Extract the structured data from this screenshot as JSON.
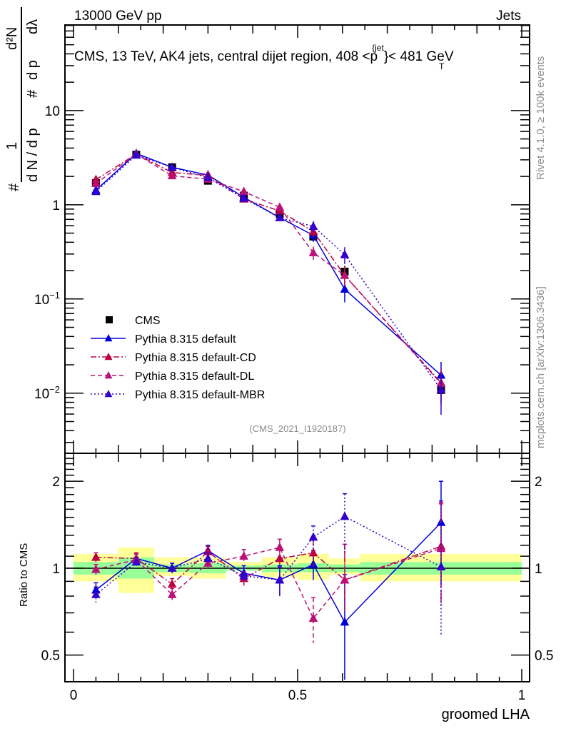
{
  "header": {
    "left": "13000 GeV pp",
    "right": "Jets"
  },
  "side_labels": {
    "rivet": "Rivet 4.1.0, ≥ 100k events",
    "mcplots": "mcplots.cern.ch [arXiv:1306.3436]"
  },
  "chart_data": [
    {
      "type": "line",
      "panel": "main",
      "title": "CMS, 13 TeV, AK4 jets, central dijet region, 408 <p_T^{jet}}< 481 GeV",
      "title_parts": {
        "pre": "CMS, 13 TeV, AK4 jets, central dijet region, 408 <p",
        "sup": "{jet",
        "sub": "T",
        "post": "}< 481 GeV"
      },
      "ylabel": "1/(dN / dp_T) d²N/(dp_T dλ)",
      "ylabel_parts": {
        "hash": "#",
        "one": "1",
        "den": "d N / d p",
        "numhash": "#",
        "num2": "d²N",
        "den2": "d p",
        "dl": "dλ",
        "T": "T"
      },
      "yscale": "log",
      "ylim": [
        0.0023,
        81
      ],
      "yticks": [
        {
          "v": 0.01,
          "label": "10^-2",
          "base": "10",
          "exp": "−2"
        },
        {
          "v": 0.1,
          "label": "10^-1",
          "base": "10",
          "exp": "−1"
        },
        {
          "v": 1,
          "label": "1"
        },
        {
          "v": 10,
          "label": "10"
        }
      ],
      "xlim": [
        -0.02,
        1.02
      ],
      "watermark": "(CMS_2021_I1920187)",
      "legend_position": "bottom-left",
      "bin_edges": [
        0,
        0.1,
        0.18,
        0.26,
        0.34,
        0.42,
        0.5,
        0.57,
        0.64,
        1.0
      ],
      "x": [
        0.05,
        0.14,
        0.22,
        0.3,
        0.38,
        0.46,
        0.535,
        0.605,
        0.82
      ],
      "series": [
        {
          "name": "CMS",
          "marker": "square",
          "color": "#000000",
          "line": "none",
          "values": [
            1.7,
            3.4,
            2.5,
            1.8,
            1.25,
            0.8,
            0.46,
            0.195,
            0.0108
          ],
          "errors": [
            0.1,
            0.2,
            0.1,
            0.1,
            0.08,
            0.07,
            0.05,
            0.03,
            0.0015
          ]
        },
        {
          "name": "Pythia 8.315 default",
          "marker": "triangle",
          "color": "#0000dd",
          "line": "solid",
          "values": [
            1.43,
            3.5,
            2.5,
            2.07,
            1.2,
            0.73,
            0.474,
            0.127,
            0.0155
          ],
          "errors": [
            0.06,
            0.1,
            0.08,
            0.07,
            0.05,
            0.06,
            0.07,
            0.035,
            0.006
          ]
        },
        {
          "name": "Pythia 8.315 default-CD",
          "marker": "triangle",
          "color": "#bb0044",
          "line": "dashdot",
          "values": [
            1.85,
            3.45,
            2.2,
            2.05,
            1.15,
            0.86,
            0.52,
            0.178,
            0.0129
          ],
          "errors": [
            0.08,
            0.1,
            0.08,
            0.07,
            0.05,
            0.07,
            0.07,
            0.04,
            0.005
          ]
        },
        {
          "name": "Pythia 8.315 default-DL",
          "marker": "triangle",
          "color": "#bb1177",
          "line": "dashed",
          "values": [
            1.68,
            3.45,
            2.03,
            1.87,
            1.38,
            0.94,
            0.31,
            0.178,
            0.0126
          ],
          "errors": [
            0.08,
            0.1,
            0.08,
            0.07,
            0.06,
            0.07,
            0.05,
            0.04,
            0.005
          ]
        },
        {
          "name": "Pythia 8.315 default-MBR",
          "marker": "triangle",
          "color": "#3300cc",
          "line": "dotted",
          "values": [
            1.38,
            3.37,
            2.5,
            1.94,
            1.17,
            0.73,
            0.59,
            0.295,
            0.0109
          ],
          "errors": [
            0.06,
            0.1,
            0.08,
            0.07,
            0.05,
            0.06,
            0.08,
            0.06,
            0.005
          ]
        }
      ]
    },
    {
      "type": "line",
      "panel": "ratio",
      "ylabel": "Ratio to CMS",
      "xlabel": "groomed LHA",
      "yscale": "log",
      "ylim": [
        0.404,
        2.5
      ],
      "yticks": [
        {
          "v": 0.5,
          "label": "0.5"
        },
        {
          "v": 1,
          "label": "1"
        },
        {
          "v": 2,
          "label": "2"
        }
      ],
      "xlim": [
        -0.02,
        1.02
      ],
      "xticks": [
        {
          "v": 0,
          "label": "0"
        },
        {
          "v": 0.5,
          "label": "0.5"
        },
        {
          "v": 1,
          "label": "1"
        }
      ],
      "bands": {
        "stat_color": "#99ff99",
        "total_color": "#ffff99",
        "stat": [
          [
            0.95,
            1.05
          ],
          [
            0.92,
            1.09
          ],
          [
            0.97,
            1.03
          ],
          [
            0.96,
            1.04
          ],
          [
            0.98,
            1.02
          ],
          [
            0.97,
            1.03
          ],
          [
            0.97,
            1.04
          ],
          [
            0.97,
            1.03
          ],
          [
            0.95,
            1.05
          ]
        ],
        "total": [
          [
            0.9,
            1.12
          ],
          [
            0.82,
            1.18
          ],
          [
            0.94,
            1.09
          ],
          [
            0.92,
            1.09
          ],
          [
            0.98,
            1.05
          ],
          [
            0.93,
            1.09
          ],
          [
            0.91,
            1.12
          ],
          [
            0.95,
            1.08
          ],
          [
            0.9,
            1.12
          ]
        ]
      },
      "x": [
        0.05,
        0.14,
        0.22,
        0.3,
        0.38,
        0.46,
        0.535,
        0.605,
        0.82
      ],
      "series": [
        {
          "name": "Pythia 8.315 default",
          "color": "#0000dd",
          "line": "solid",
          "values": [
            0.84,
            1.08,
            1.0,
            1.15,
            0.96,
            0.91,
            1.03,
            0.65,
            1.44
          ],
          "err_lo": [
            0.05,
            0.04,
            0.04,
            0.05,
            0.06,
            0.11,
            0.12,
            0.24,
            0.55
          ],
          "err_hi": [
            0.05,
            0.04,
            0.04,
            0.05,
            0.06,
            0.11,
            0.12,
            0.3,
            0.56
          ]
        },
        {
          "name": "Pythia 8.315 default-CD",
          "color": "#bb0044",
          "line": "dashdot",
          "values": [
            1.09,
            1.08,
            0.88,
            1.14,
            0.92,
            1.08,
            1.13,
            0.91,
            1.19
          ],
          "err_lo": [
            0.04,
            0.05,
            0.04,
            0.05,
            0.05,
            0.1,
            0.12,
            0.2,
            0.44
          ],
          "err_hi": [
            0.04,
            0.05,
            0.04,
            0.05,
            0.05,
            0.1,
            0.12,
            0.3,
            0.5
          ]
        },
        {
          "name": "Pythia 8.315 default-DL",
          "color": "#bb1177",
          "line": "dashed",
          "values": [
            0.99,
            1.07,
            0.81,
            1.04,
            1.1,
            1.18,
            0.67,
            0.91,
            1.17
          ],
          "err_lo": [
            0.04,
            0.05,
            0.04,
            0.05,
            0.06,
            0.08,
            0.12,
            0.2,
            0.43
          ],
          "err_hi": [
            0.04,
            0.05,
            0.04,
            0.05,
            0.06,
            0.08,
            0.12,
            0.3,
            0.5
          ]
        },
        {
          "name": "Pythia 8.315 default-MBR",
          "color": "#3300cc",
          "line": "dotted",
          "values": [
            0.81,
            1.05,
            1.0,
            1.08,
            0.94,
            0.91,
            1.28,
            1.51,
            1.01
          ],
          "err_lo": [
            0.05,
            0.04,
            0.04,
            0.05,
            0.06,
            0.1,
            0.12,
            0.4,
            0.43
          ],
          "err_hi": [
            0.05,
            0.04,
            0.04,
            0.05,
            0.06,
            0.1,
            0.12,
            0.3,
            0.7
          ]
        }
      ]
    }
  ]
}
